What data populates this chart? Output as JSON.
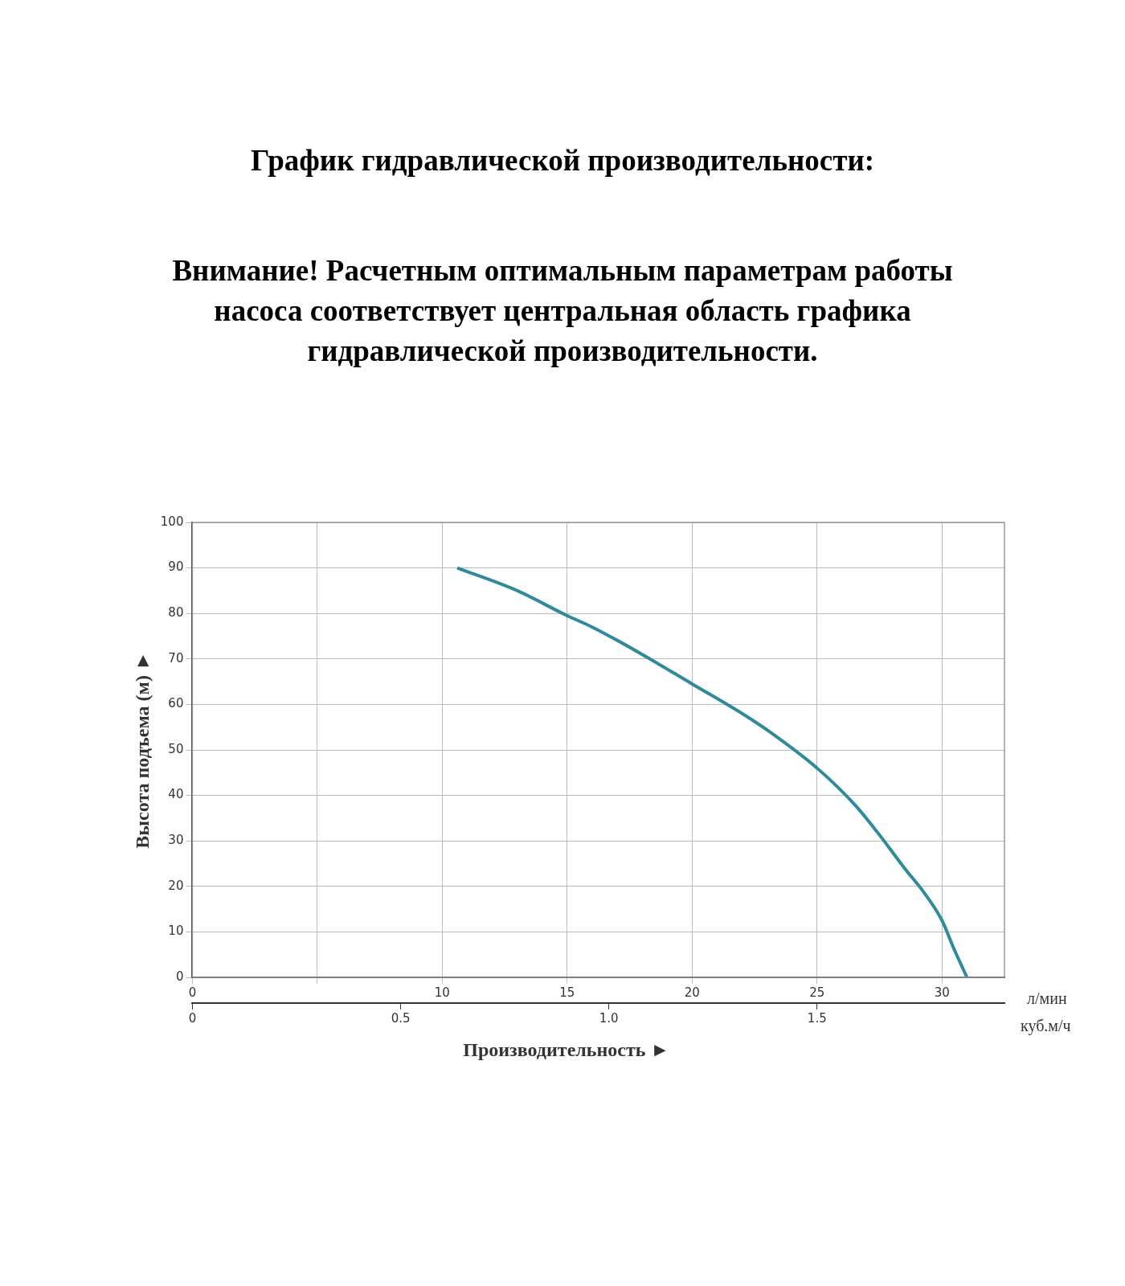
{
  "chart_data": {
    "type": "line",
    "title": "График гидравлической производительности:",
    "subtitle": "Внимание! Расчетным оптимальным параметрам работы насоса соответствует центральная область графика гидравлической производительности.",
    "xlabel": "л/мин",
    "x2label": "куб.м/ч",
    "ylabel": "Высота подъема (м) ►",
    "annotations": [
      "Производительность ►"
    ],
    "series": [
      {
        "color": "#2f8a9c",
        "x": [
          10.6,
          13,
          15,
          16,
          18,
          20,
          22,
          23.1,
          25,
          26.5,
          27.4,
          28.5,
          29.3,
          30,
          30.5,
          31
        ],
        "values": [
          90,
          85,
          79.5,
          77,
          71,
          64.5,
          58,
          54,
          46,
          38,
          32,
          24,
          18.5,
          12.5,
          6,
          0
        ]
      }
    ],
    "xlim": [
      0,
      32.5
    ],
    "xticks": [
      0,
      {
        "value": 5,
        "label": null
      },
      10,
      15,
      20,
      25,
      30
    ],
    "x2lim": [
      0,
      1.95
    ],
    "x2ticks": [
      0,
      0.5,
      {
        "value": 1,
        "label": "1.0"
      },
      1.5
    ],
    "ylim": [
      0,
      100
    ],
    "yticks": [
      0,
      10,
      20,
      30,
      40,
      50,
      60,
      70,
      80,
      90,
      100
    ],
    "grid": true
  }
}
